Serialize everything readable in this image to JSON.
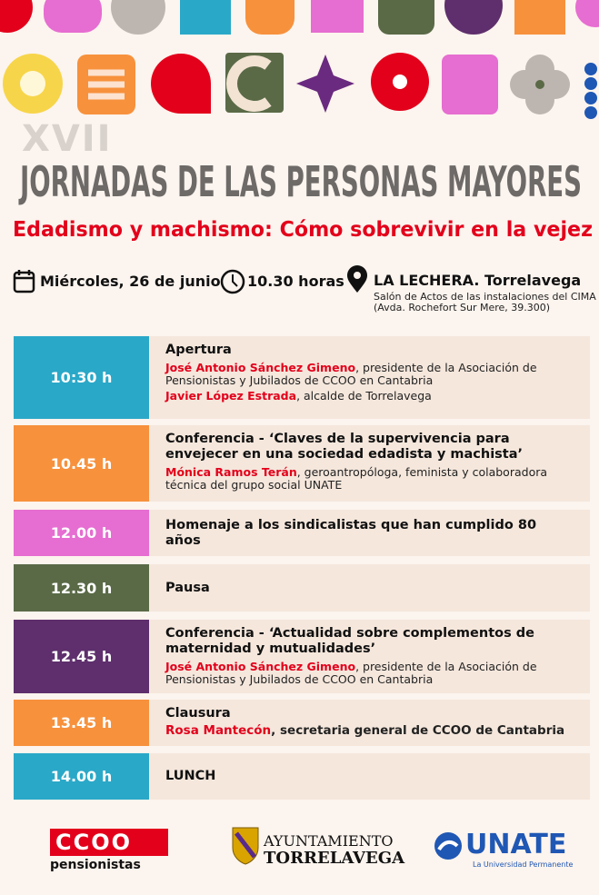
{
  "header": {
    "edition": "XVII",
    "title": "JORNADAS DE LAS PERSONAS MAYORES",
    "subtitle": "Edadismo y machismo: Cómo sobrevivir en la vejez"
  },
  "details": {
    "date": "Miércoles, 26 de junio",
    "time": "10.30 horas",
    "place": "LA LECHERA. Torrelavega",
    "venue": "Salón de Actos de las instalaciones del CIMA",
    "address": "(Avda. Rochefort Sur Mere, 39.300)"
  },
  "schedule": {
    "items": [
      {
        "time": "10:30 h",
        "color": "#2aa8c8",
        "title": "Apertura",
        "speakers": [
          {
            "name": "José Antonio Sánchez Gimeno",
            "role": ", presidente de la Asociación de Pensionistas y Jubilados de CCOO en Cantabria"
          },
          {
            "name": "Javier López Estrada",
            "role": ", alcalde de Torrelavega"
          }
        ]
      },
      {
        "time": "10.45 h",
        "color": "#f7913c",
        "title": "Conferencia - ‘Claves de la supervivencia para envejecer en una sociedad edadista y machista’",
        "speakers": [
          {
            "name": "Mónica Ramos Terán",
            "role": ", geroantropóloga, feminista y colaboradora técnica del grupo social UNATE"
          }
        ]
      },
      {
        "time": "12.00 h",
        "color": "#e66dd1",
        "title": "Homenaje a los sindicalistas que han cumplido 80 años",
        "speakers": []
      },
      {
        "time": "12.30 h",
        "color": "#5a6a47",
        "title": "Pausa",
        "speakers": []
      },
      {
        "time": "12.45 h",
        "color": "#5e2f6c",
        "title": "Conferencia - ‘Actualidad sobre complementos de maternidad y mutualidades’",
        "speakers": [
          {
            "name": "José Antonio Sánchez Gimeno",
            "role": ", presidente de la Asociación de Pensionistas y Jubilados de CCOO en Cantabria"
          }
        ]
      },
      {
        "time": "13.45 h",
        "color": "#f7913c",
        "title": "Clausura",
        "speakers": [
          {
            "name": "Rosa Mantecón",
            "role": ", secretaria general de CCOO de Cantabria"
          }
        ]
      },
      {
        "time": "14.00 h",
        "color": "#2aa8c8",
        "title": "LUNCH",
        "speakers": []
      }
    ]
  },
  "footer": {
    "ccoo": "CCOO",
    "ccoo_sub": "pensionistas",
    "ayto_top": "AYUNTAMIENTO",
    "ayto_bottom": "TORRELAVEGA",
    "unate": "UNATE",
    "unate_sub": "La Universidad Permanente"
  }
}
